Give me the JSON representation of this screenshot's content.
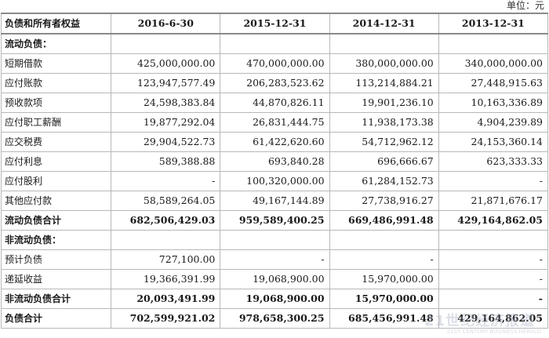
{
  "unit_label": "单位：元",
  "header": {
    "label": "负债和所有者权益",
    "columns": [
      "2016-6-30",
      "2015-12-31",
      "2014-12-31",
      "2013-12-31"
    ]
  },
  "rows": [
    {
      "label": "流动负债：",
      "kind": "section",
      "values": [
        "",
        "",
        "",
        ""
      ]
    },
    {
      "label": "短期借款",
      "kind": "item",
      "values": [
        "425,000,000.00",
        "470,000,000.00",
        "380,000,000.00",
        "340,000,000.00"
      ]
    },
    {
      "label": "应付账款",
      "kind": "item",
      "values": [
        "123,947,577.49",
        "206,283,523.62",
        "113,214,884.21",
        "27,448,915.63"
      ]
    },
    {
      "label": "预收款项",
      "kind": "item",
      "values": [
        "24,598,383.84",
        "44,870,826.11",
        "19,901,236.10",
        "10,163,336.89"
      ]
    },
    {
      "label": "应付职工薪酬",
      "kind": "item",
      "values": [
        "19,877,292.04",
        "26,831,444.75",
        "11,938,173.38",
        "4,904,239.89"
      ]
    },
    {
      "label": "应交税费",
      "kind": "item",
      "values": [
        "29,904,522.73",
        "61,422,620.60",
        "54,712,962.12",
        "24,153,360.14"
      ]
    },
    {
      "label": "应付利息",
      "kind": "item",
      "values": [
        "589,388.88",
        "693,840.28",
        "696,666.67",
        "623,333.33"
      ]
    },
    {
      "label": "应付股利",
      "kind": "item",
      "values": [
        "-",
        "100,320,000.00",
        "61,284,152.73",
        "-"
      ]
    },
    {
      "label": "其他应付款",
      "kind": "item",
      "values": [
        "58,589,264.05",
        "49,167,144.89",
        "27,738,916.27",
        "21,871,676.17"
      ]
    },
    {
      "label": "流动负债合计",
      "kind": "total",
      "values": [
        "682,506,429.03",
        "959,589,400.25",
        "669,486,991.48",
        "429,164,862.05"
      ]
    },
    {
      "label": "非流动负债：",
      "kind": "section",
      "values": [
        "",
        "",
        "",
        ""
      ]
    },
    {
      "label": "预计负债",
      "kind": "item",
      "values": [
        "727,100.00",
        "-",
        "-",
        "-"
      ]
    },
    {
      "label": "递延收益",
      "kind": "item",
      "values": [
        "19,366,391.99",
        "19,068,900.00",
        "15,970,000.00",
        "-"
      ]
    },
    {
      "label": "非流动负债合计",
      "kind": "total",
      "values": [
        "20,093,491.99",
        "19,068,900.00",
        "15,970,000.00",
        "-"
      ]
    },
    {
      "label": "负债合计",
      "kind": "total",
      "values": [
        "702,599,921.02",
        "978,658,300.25",
        "685,456,991.48",
        "429,164,862.05"
      ]
    }
  ],
  "watermark": {
    "text": "21世纪经济报道",
    "sub": "21ST CENTURY BUSINESS HERALD"
  }
}
